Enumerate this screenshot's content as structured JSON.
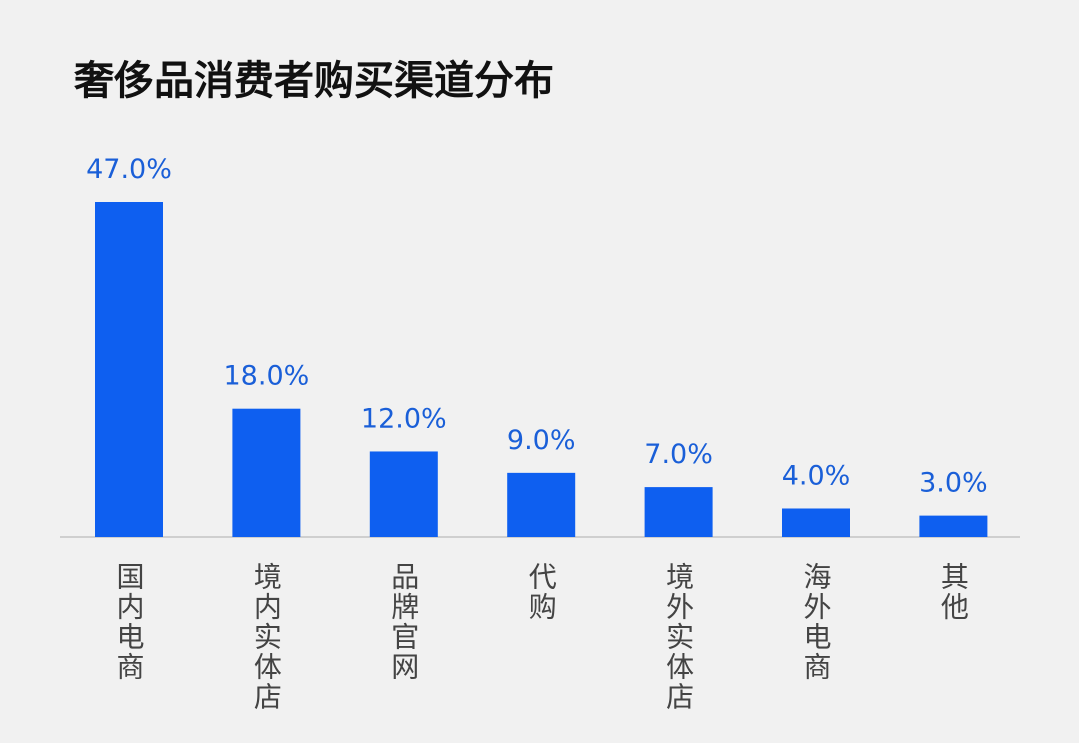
{
  "chart_data": {
    "type": "bar",
    "title": "奢侈品消费者购买渠道分布",
    "categories": [
      "国内电商",
      "境内实体店",
      "品牌官网",
      "代购",
      "境外实体店",
      "海外电商",
      "其他"
    ],
    "values": [
      47,
      18,
      12,
      9,
      7,
      4,
      3
    ],
    "value_labels": [
      "47.0%",
      "18.0%",
      "12.0%",
      "9.0%",
      "7.0%",
      "4.0%",
      "3.0%"
    ],
    "color": "#0e5ff0"
  }
}
